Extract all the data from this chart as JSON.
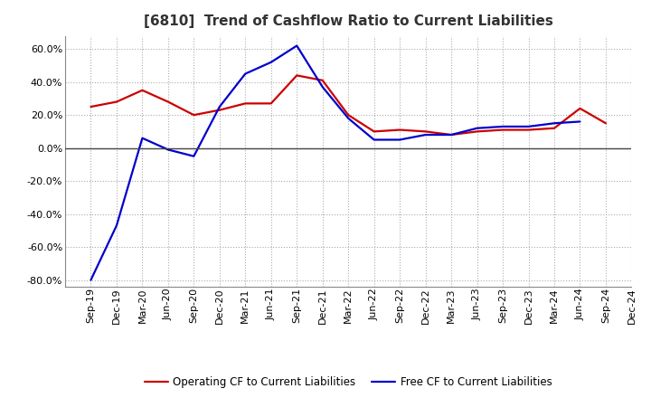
{
  "title": "[6810]  Trend of Cashflow Ratio to Current Liabilities",
  "x_labels": [
    "Sep-19",
    "Dec-19",
    "Mar-20",
    "Jun-20",
    "Sep-20",
    "Dec-20",
    "Mar-21",
    "Jun-21",
    "Sep-21",
    "Dec-21",
    "Mar-22",
    "Jun-22",
    "Sep-22",
    "Dec-22",
    "Mar-23",
    "Jun-23",
    "Sep-23",
    "Dec-23",
    "Mar-24",
    "Jun-24",
    "Sep-24",
    "Dec-24"
  ],
  "operating_cf": [
    0.25,
    0.28,
    0.35,
    0.28,
    0.2,
    0.23,
    0.27,
    0.27,
    0.44,
    0.41,
    0.2,
    0.1,
    0.11,
    0.1,
    0.08,
    0.1,
    0.11,
    0.11,
    0.12,
    0.24,
    0.15,
    null
  ],
  "free_cf": [
    -0.8,
    -0.47,
    0.06,
    -0.01,
    -0.05,
    0.25,
    0.45,
    0.52,
    0.62,
    0.37,
    0.18,
    0.05,
    0.05,
    0.08,
    0.08,
    0.12,
    0.13,
    0.13,
    0.15,
    0.16,
    null,
    null
  ],
  "operating_color": "#cc0000",
  "free_color": "#0000cc",
  "ylim": [
    -0.84,
    0.68
  ],
  "yticks": [
    -0.8,
    -0.6,
    -0.4,
    -0.2,
    0.0,
    0.2,
    0.4,
    0.6
  ],
  "legend_op": "Operating CF to Current Liabilities",
  "legend_free": "Free CF to Current Liabilities",
  "bg_color": "#ffffff",
  "plot_bg": "#ffffff",
  "title_fontsize": 11,
  "tick_fontsize": 8,
  "legend_fontsize": 8.5
}
